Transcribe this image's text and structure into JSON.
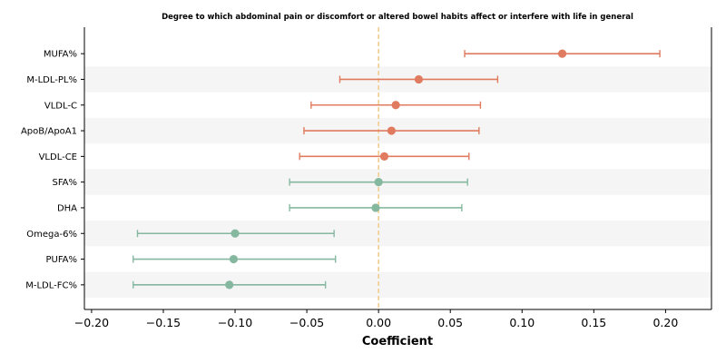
{
  "chart_data": {
    "type": "scatter",
    "title": "Degree to which abdominal pain or discomfort or altered bowel habits affect or interfere with life in general",
    "xlabel": "Coefficient",
    "ylabel": "",
    "xlim": [
      -0.205,
      0.232
    ],
    "xticks": [
      -0.2,
      -0.15,
      -0.1,
      -0.05,
      0.0,
      0.05,
      0.1,
      0.15,
      0.2
    ],
    "xtick_labels": [
      "−0.20",
      "−0.15",
      "−0.10",
      "−0.05",
      "0.00",
      "0.05",
      "0.10",
      "0.15",
      "0.20"
    ],
    "reference_line": 0.0,
    "grid": false,
    "alternating_row_shading": true,
    "colors": {
      "positive": "#e07b5f",
      "negative": "#86b8a0",
      "reference": "#f5c98a",
      "row_shade": "#f5f5f5"
    },
    "points": [
      {
        "label": "MUFA%",
        "coef": 0.128,
        "lower": 0.06,
        "upper": 0.196
      },
      {
        "label": "M-LDL-PL%",
        "coef": 0.028,
        "lower": -0.027,
        "upper": 0.083
      },
      {
        "label": "VLDL-C",
        "coef": 0.012,
        "lower": -0.047,
        "upper": 0.071
      },
      {
        "label": "ApoB/ApoA1",
        "coef": 0.009,
        "lower": -0.052,
        "upper": 0.07
      },
      {
        "label": "VLDL-CE",
        "coef": 0.004,
        "lower": -0.055,
        "upper": 0.063
      },
      {
        "label": "SFA%",
        "coef": 0.0,
        "lower": -0.062,
        "upper": 0.062
      },
      {
        "label": "DHA",
        "coef": -0.002,
        "lower": -0.062,
        "upper": 0.058
      },
      {
        "label": "Omega-6%",
        "coef": -0.1,
        "lower": -0.168,
        "upper": -0.031
      },
      {
        "label": "PUFA%",
        "coef": -0.101,
        "lower": -0.171,
        "upper": -0.03
      },
      {
        "label": "M-LDL-FC%",
        "coef": -0.104,
        "lower": -0.171,
        "upper": -0.037
      }
    ]
  }
}
